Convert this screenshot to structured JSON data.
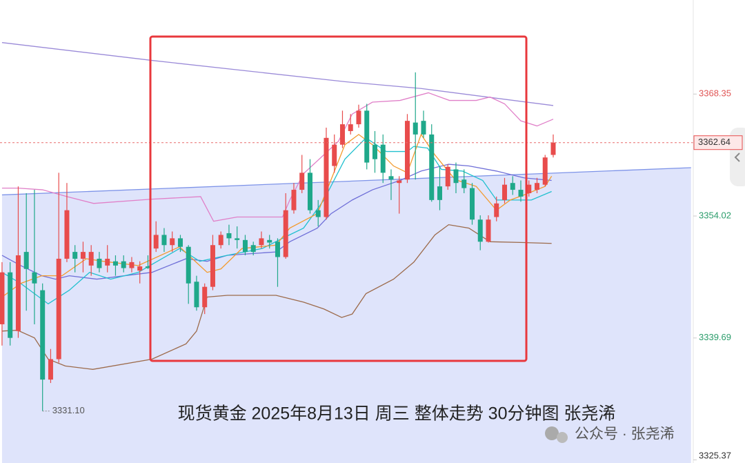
{
  "chart_data": {
    "type": "candlestick",
    "title": "现货黄金  2025年8月13日 周三 整体走势 30分钟图 张尧浠",
    "watermark": "公众号 · 张尧浠",
    "ylim": [
      3325.0,
      3379.4
    ],
    "xlim": [
      -0.25,
      84.85
    ],
    "yticks": [
      3368.35,
      3354.02,
      3339.69,
      3325.37
    ],
    "up_color": "#e84c4c",
    "down_color": "#1fa88a",
    "last_price": 3362.64,
    "low_price": {
      "value": 3331.1,
      "label": "3331.10"
    },
    "open": [
      3341.3,
      3347.4,
      3340.5,
      3349.8,
      3347.4,
      3345.3,
      3334.8,
      3337.2,
      3349.0,
      3349.8,
      3349.0,
      3348.2,
      3349.0,
      3348.2,
      3348.7,
      3348.7,
      3347.9,
      3347.6,
      3348.1,
      3350.2,
      3351.8,
      3350.6,
      3351.4,
      3350.4,
      3346.3,
      3343.3,
      3345.7,
      3350.6,
      3352.0,
      3351.4,
      3351.2,
      3350.6,
      3350.6,
      3351.2,
      3351.0,
      3349.2,
      3354.7,
      3357.1,
      3359.1,
      3354.7,
      3353.9,
      3359.9,
      3362.4,
      3364.0,
      3364.8,
      3366.4,
      3362.4,
      3362.4,
      3358.7,
      3357.9,
      3358.3,
      3365.0,
      3365.2,
      3363.6,
      3357.5,
      3357.5,
      3359.5,
      3358.3,
      3357.3,
      3353.6,
      3351.0,
      3353.9,
      3355.9,
      3357.9,
      3357.1,
      3356.7,
      3357.1,
      3357.7,
      3361.2
    ],
    "high": [
      3348.6,
      3348.6,
      3357.5,
      3356.7,
      3357.1,
      3346.1,
      3338.4,
      3359.1,
      3357.9,
      3350.6,
      3351.0,
      3350.6,
      3349.8,
      3350.6,
      3349.4,
      3349.4,
      3349.2,
      3348.7,
      3349.4,
      3353.4,
      3352.6,
      3352.2,
      3351.8,
      3350.6,
      3347.0,
      3346.1,
      3351.8,
      3352.2,
      3353.0,
      3352.8,
      3351.8,
      3351.0,
      3352.2,
      3351.8,
      3351.4,
      3356.7,
      3357.9,
      3361.2,
      3360.7,
      3355.9,
      3364.4,
      3363.6,
      3366.4,
      3366.0,
      3367.1,
      3367.2,
      3364.0,
      3363.6,
      3359.5,
      3358.7,
      3366.0,
      3370.9,
      3366.4,
      3364.8,
      3359.9,
      3360.1,
      3360.3,
      3359.5,
      3357.9,
      3354.1,
      3354.1,
      3356.3,
      3358.5,
      3358.7,
      3358.2,
      3358.2,
      3358.5,
      3361.2,
      3363.6
    ],
    "low": [
      3338.8,
      3338.8,
      3339.7,
      3342.9,
      3341.3,
      3331.1,
      3334.4,
      3336.8,
      3348.6,
      3347.4,
      3347.4,
      3347.0,
      3347.4,
      3347.4,
      3347.0,
      3347.4,
      3347.4,
      3346.1,
      3347.8,
      3349.8,
      3349.8,
      3349.8,
      3349.8,
      3343.7,
      3342.9,
      3342.5,
      3345.3,
      3350.2,
      3350.6,
      3350.2,
      3349.4,
      3349.4,
      3350.2,
      3350.2,
      3345.7,
      3349.0,
      3354.3,
      3356.7,
      3354.3,
      3352.8,
      3353.6,
      3359.1,
      3362.0,
      3363.6,
      3364.4,
      3359.5,
      3359.1,
      3357.9,
      3355.9,
      3354.3,
      3357.9,
      3358.3,
      3363.2,
      3355.7,
      3354.7,
      3357.1,
      3356.7,
      3356.7,
      3353.0,
      3350.0,
      3350.9,
      3353.4,
      3355.5,
      3356.5,
      3355.7,
      3356.3,
      3356.7,
      3357.5,
      3360.9
    ],
    "close": [
      3347.4,
      3339.7,
      3349.4,
      3347.8,
      3346.1,
      3334.8,
      3337.2,
      3349.0,
      3354.7,
      3349.0,
      3349.8,
      3349.8,
      3347.9,
      3349.0,
      3348.2,
      3347.9,
      3348.6,
      3348.1,
      3347.9,
      3351.8,
      3350.6,
      3351.4,
      3350.4,
      3346.1,
      3343.3,
      3345.7,
      3350.6,
      3351.8,
      3351.4,
      3351.2,
      3349.8,
      3349.8,
      3351.4,
      3350.9,
      3349.2,
      3354.7,
      3357.1,
      3359.1,
      3354.7,
      3353.9,
      3363.2,
      3362.4,
      3364.8,
      3364.8,
      3366.4,
      3360.3,
      3360.7,
      3359.1,
      3358.3,
      3358.2,
      3365.2,
      3363.6,
      3363.6,
      3355.9,
      3355.9,
      3359.8,
      3357.9,
      3357.3,
      3353.6,
      3351.0,
      3353.6,
      3355.5,
      3357.7,
      3357.1,
      3356.3,
      3357.7,
      3357.9,
      3360.9,
      3362.64
    ],
    "trendline": {
      "color": "#7d93e8",
      "fill": "#dfe4fb",
      "x": [
        0,
        85
      ],
      "values": [
        3356.5,
        3359.7
      ]
    },
    "lines": [
      {
        "color": "#9a8ad8",
        "x": [
          0,
          18.5,
          42.3,
          51.7,
          68
        ],
        "values": [
          3374.4,
          3372.3,
          3369.8,
          3369.0,
          3367.0
        ]
      },
      {
        "color": "#e07fc8",
        "x": [
          0,
          2,
          5,
          8,
          11.3,
          18.5,
          24.5,
          26.1,
          29,
          34.6,
          35.5,
          37.2,
          41.5,
          43.2,
          45.7,
          49.1,
          52.6,
          55.2,
          58.5,
          60.2,
          62,
          64,
          66,
          68
        ],
        "values": [
          3357.3,
          3357.3,
          3357.1,
          3356.3,
          3355.5,
          3356.0,
          3356.3,
          3353.4,
          3353.9,
          3353.9,
          3355.9,
          3359.0,
          3362.8,
          3366.0,
          3367.4,
          3367.6,
          3368.5,
          3367.6,
          3367.6,
          3368.0,
          3367.2,
          3365.2,
          3364.6,
          3365.4
        ]
      },
      {
        "color": "#9c6a4a",
        "x": [
          0,
          1.9,
          4,
          5.7,
          7.8,
          11.2,
          18.5,
          22.7,
          24,
          25.3,
          27.8,
          33.8,
          37.2,
          39.7,
          41.9,
          43.2,
          44.9,
          48.3,
          50.8,
          53.4,
          55.1,
          57.6,
          60.2,
          64.4,
          67.8
        ],
        "values": [
          3340.5,
          3340.6,
          3339.7,
          3337.2,
          3336.4,
          3336.0,
          3337.2,
          3339.0,
          3340.5,
          3344.5,
          3344.7,
          3344.7,
          3343.9,
          3343.1,
          3342.1,
          3342.5,
          3344.9,
          3346.6,
          3348.6,
          3351.8,
          3353.0,
          3352.6,
          3351.0,
          3350.9,
          3350.8
        ]
      },
      {
        "color": "#6f6fd8",
        "x": [
          0,
          2.3,
          4.9,
          6.6,
          8.3,
          11.7,
          18.5,
          22.7,
          25.3,
          27.8,
          33.8,
          35.5,
          38.9,
          40.6,
          43.2,
          45.7,
          49.1,
          51.7,
          55.1,
          57.6,
          61,
          64.4,
          67.8
        ],
        "values": [
          3349.4,
          3348.2,
          3347.0,
          3346.6,
          3347.0,
          3346.6,
          3347.4,
          3349.0,
          3348.7,
          3349.4,
          3349.8,
          3351.0,
          3352.6,
          3354.3,
          3355.9,
          3357.1,
          3358.2,
          3359.3,
          3360.1,
          3359.9,
          3359.3,
          3358.5,
          3358.2
        ]
      },
      {
        "color": "#22c0cf",
        "x": [
          0,
          2.3,
          5.7,
          8.3,
          10.8,
          13.4,
          16.8,
          21.9,
          24.4,
          27.8,
          32.1,
          34.6,
          37.2,
          39.7,
          42.3,
          44.9,
          47.4,
          50,
          50.8,
          52.5,
          54.2,
          56.8,
          59.3,
          61,
          62.7,
          65.3,
          67.8
        ],
        "values": [
          3347.4,
          3346.1,
          3343.7,
          3345.3,
          3347.4,
          3346.6,
          3347.4,
          3350.2,
          3348.7,
          3349.4,
          3350.2,
          3351.4,
          3352.6,
          3355.9,
          3360.7,
          3363.2,
          3361.6,
          3361.6,
          3362.2,
          3362.0,
          3359.5,
          3359.3,
          3358.2,
          3355.9,
          3355.9,
          3355.9,
          3356.9
        ]
      },
      {
        "color": "#f39a2c",
        "x": [
          0,
          2.3,
          4.9,
          7.4,
          10.4,
          12.5,
          16.8,
          21.9,
          25.3,
          27,
          29.6,
          33.8,
          35.5,
          38.9,
          40.6,
          42.3,
          44,
          45.7,
          48.3,
          50,
          51.7,
          53.4,
          55.9,
          58.5,
          61,
          62.7,
          64.4,
          67,
          67.8
        ],
        "values": [
          3344.5,
          3346.1,
          3347.0,
          3347.0,
          3349.0,
          3348.7,
          3348.2,
          3350.4,
          3347.4,
          3347.8,
          3350.2,
          3350.6,
          3352.6,
          3354.3,
          3358.3,
          3362.4,
          3363.6,
          3362.4,
          3359.9,
          3359.1,
          3363.6,
          3361.2,
          3358.3,
          3357.5,
          3354.7,
          3355.9,
          3356.5,
          3357.5,
          3358.7
        ]
      }
    ]
  }
}
